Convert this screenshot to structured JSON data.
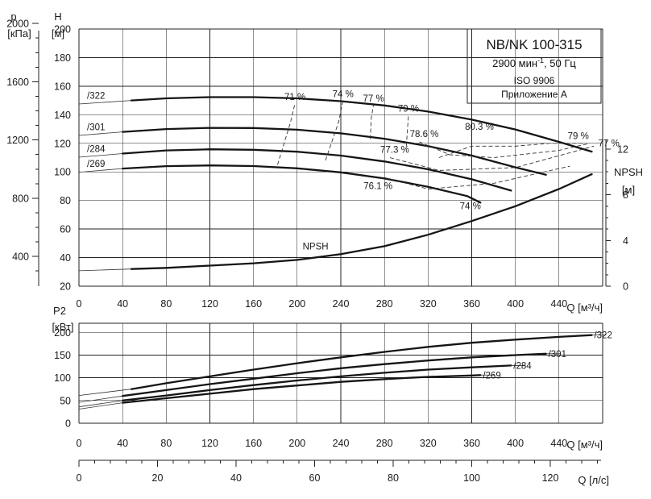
{
  "chart_data": [
    {
      "type": "line",
      "title": "NB/NK 100-315",
      "info": {
        "speed": "2900 мин",
        "speed_sup": "-1",
        "freq": ", 50 Гц",
        "standard": "ISO 9906",
        "annex": "Приложение A"
      },
      "y_left_p": {
        "name": "p",
        "unit": "[кПа]",
        "ticks": [
          400,
          800,
          1200,
          1600,
          2000
        ]
      },
      "y_left_h": {
        "name": "H",
        "unit": "[м]",
        "ticks": [
          20,
          40,
          60,
          80,
          100,
          120,
          140,
          160,
          180,
          200
        ],
        "ylim": [
          20,
          200
        ]
      },
      "y_right": {
        "name": "NPSH",
        "unit": "[м]",
        "ticks": [
          0,
          4,
          8,
          12
        ],
        "ylim": [
          0,
          22.5
        ]
      },
      "x_ticks": [
        0,
        40,
        80,
        120,
        160,
        200,
        240,
        280,
        320,
        360,
        400,
        440
      ],
      "xlabel": "Q [м³/ч]",
      "xlim": [
        0,
        480
      ],
      "grid": true,
      "series": [
        {
          "name": "/322",
          "x": [
            48,
            80,
            120,
            160,
            200,
            240,
            280,
            320,
            360,
            400,
            440,
            470
          ],
          "y": [
            150,
            151.5,
            152.3,
            152.3,
            151.5,
            149.5,
            146.5,
            142.2,
            136.6,
            129.7,
            121,
            114.2
          ]
        },
        {
          "name": "/301",
          "x": [
            40,
            80,
            120,
            160,
            200,
            240,
            280,
            320,
            360,
            400,
            428
          ],
          "y": [
            128,
            130,
            130.8,
            130.7,
            129.5,
            127,
            123.2,
            118,
            111.4,
            103.2,
            98
          ]
        },
        {
          "name": "/284",
          "x": [
            40,
            80,
            120,
            160,
            200,
            240,
            280,
            320,
            360,
            396
          ],
          "y": [
            112.8,
            115,
            115.8,
            115.5,
            114.1,
            111.4,
            107.3,
            101.8,
            94.8,
            86.9
          ]
        },
        {
          "name": "/269",
          "x": [
            40,
            80,
            120,
            160,
            200,
            240,
            280,
            320,
            356,
            368
          ],
          "y": [
            102.3,
            104,
            104.5,
            104.1,
            102.5,
            99.7,
            95.4,
            89.6,
            83,
            78.5
          ]
        }
      ],
      "npsh": {
        "name": "NPSH",
        "x": [
          48,
          80,
          120,
          160,
          200,
          240,
          280,
          320,
          360,
          400,
          440,
          470
        ],
        "y": [
          1.5,
          1.6,
          1.8,
          2.0,
          2.3,
          2.8,
          3.5,
          4.5,
          5.7,
          7.0,
          8.5,
          9.8
        ]
      },
      "efficiency": [
        {
          "label": "71 %",
          "points": [
            [
              182,
              105
            ],
            [
              194,
              135
            ],
            [
              198,
              148
            ]
          ]
        },
        {
          "label": "74 %",
          "points": [
            [
              226,
              108
            ],
            [
              238,
              135
            ],
            [
              242,
              150
            ]
          ]
        },
        {
          "label": "77 %",
          "points": [
            [
              267,
              123
            ],
            [
              268,
              138
            ],
            [
              270,
              147
            ]
          ]
        },
        {
          "label": "79 %",
          "points": [
            [
              300,
              118
            ],
            [
              302,
              140
            ]
          ]
        },
        {
          "label": "80.3 %",
          "points": [
            [
              330,
              110
            ],
            [
              360,
              118
            ],
            [
              400,
              118
            ],
            [
              432,
              120
            ],
            [
              462,
              120
            ]
          ]
        },
        {
          "label": "78.6 %",
          "points": [
            [
              312,
              121
            ],
            [
              340,
              112
            ],
            [
              380,
              110
            ],
            [
              440,
              115
            ],
            [
              468,
              120
            ]
          ]
        },
        {
          "label": "77.3 %",
          "points": [
            [
              285,
              110
            ],
            [
              330,
              101
            ],
            [
              400,
              103
            ],
            [
              472,
              118
            ]
          ]
        },
        {
          "label": "76.1 %",
          "points": [
            [
              280,
              96
            ],
            [
              320,
              88
            ],
            [
              380,
              92
            ],
            [
              450,
              104
            ]
          ]
        }
      ],
      "efficiency_side_labels": [
        {
          "label": "79 %",
          "anchor": [
            448,
            123
          ]
        },
        {
          "label": "77 %",
          "anchor": [
            476,
            118
          ]
        },
        {
          "label": "74 %",
          "anchor": [
            349,
            74
          ]
        }
      ]
    },
    {
      "type": "line",
      "y_name": "P2",
      "y_unit": "[кВт]",
      "y_ticks": [
        0,
        50,
        100,
        150,
        200
      ],
      "ylim": [
        0,
        220
      ],
      "x_ticks": [
        0,
        40,
        80,
        120,
        160,
        200,
        240,
        280,
        320,
        360,
        400,
        440
      ],
      "xlabel": "Q [м³/ч]",
      "xlim": [
        0,
        480
      ],
      "grid": true,
      "series": [
        {
          "name": "/322",
          "x": [
            48,
            80,
            120,
            160,
            200,
            240,
            280,
            320,
            360,
            400,
            440,
            470
          ],
          "y": [
            75,
            88,
            103,
            118,
            132,
            145,
            157,
            168,
            177,
            184,
            190,
            194
          ]
        },
        {
          "name": "/301",
          "x": [
            40,
            80,
            120,
            160,
            200,
            240,
            280,
            320,
            360,
            400,
            428
          ],
          "y": [
            60,
            73,
            86,
            98,
            110,
            121,
            130,
            138,
            145,
            150,
            153
          ]
        },
        {
          "name": "/284",
          "x": [
            40,
            80,
            120,
            160,
            200,
            240,
            280,
            320,
            360,
            396
          ],
          "y": [
            50,
            61,
            73,
            84,
            94,
            103,
            111,
            118,
            123,
            127
          ]
        },
        {
          "name": "/269",
          "x": [
            40,
            80,
            120,
            160,
            200,
            240,
            280,
            320,
            360,
            368
          ],
          "y": [
            45,
            55,
            65,
            75,
            83,
            91,
            97,
            102,
            105,
            106
          ]
        }
      ]
    },
    {
      "type": "axis",
      "xlabel": "Q [л/с]",
      "x_ticks": [
        0,
        20,
        40,
        60,
        80,
        100,
        120
      ],
      "xlim": [
        0,
        133.33
      ]
    }
  ]
}
